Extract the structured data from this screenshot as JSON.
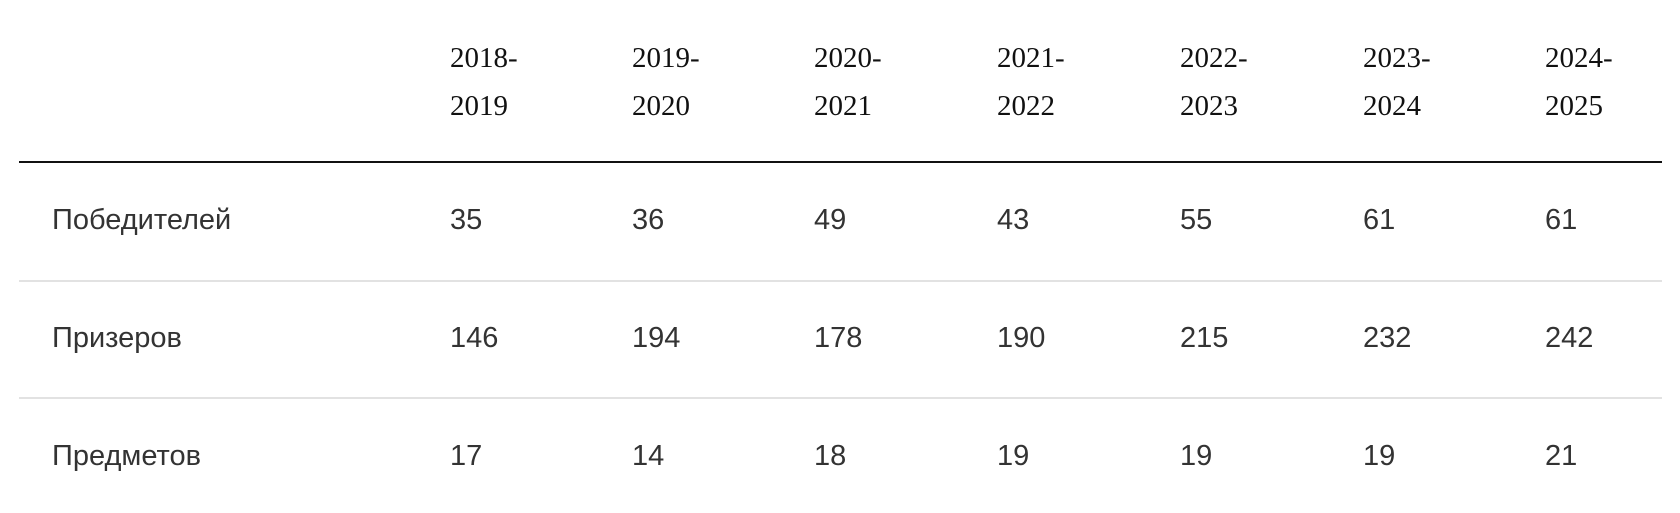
{
  "table": {
    "columns": [
      "2018-2019",
      "2019-2020",
      "2020-2021",
      "2021-2022",
      "2022-2023",
      "2023-2024",
      "2024-2025"
    ],
    "rows": [
      {
        "label": "Победителей",
        "values": [
          35,
          36,
          49,
          43,
          55,
          61,
          61
        ]
      },
      {
        "label": "Призеров",
        "values": [
          146,
          194,
          178,
          190,
          215,
          232,
          242
        ]
      },
      {
        "label": "Предметов",
        "values": [
          17,
          14,
          18,
          19,
          19,
          19,
          21
        ]
      }
    ]
  }
}
